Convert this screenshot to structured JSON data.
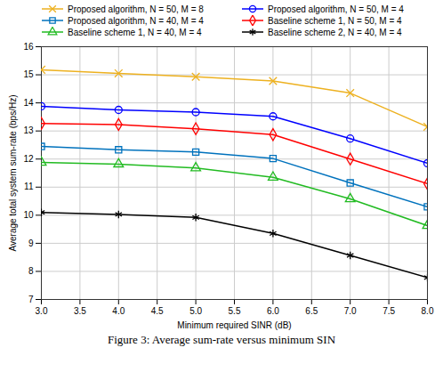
{
  "chart_data": {
    "type": "line",
    "caption": "Figure 3: Average sum-rate versus minimum SIN",
    "x_label": "Minimum required SINR (dB)",
    "y_label": "Average total system sum-rate (bps/Hz)",
    "x": [
      3,
      4,
      5,
      6,
      7,
      8
    ],
    "xlim": [
      3,
      8
    ],
    "xticks": [
      3,
      3.5,
      4,
      4.5,
      5,
      5.5,
      6,
      6.5,
      7,
      7.5,
      8
    ],
    "ylim": [
      7,
      16
    ],
    "yticks": [
      7,
      8,
      9,
      10,
      11,
      12,
      13,
      14,
      15,
      16
    ],
    "grid": true,
    "legend": "top",
    "series": [
      {
        "name": "Proposed algorithm, N = 50, M = 8",
        "color": "#EDB120",
        "marker": "times",
        "values": [
          15.18,
          15.05,
          14.93,
          14.78,
          14.35,
          13.15
        ]
      },
      {
        "name": "Proposed algorithm, N = 50, M = 4",
        "color": "#0000FF",
        "marker": "circle",
        "values": [
          13.88,
          13.75,
          13.67,
          13.52,
          12.73,
          11.85
        ]
      },
      {
        "name": "Proposed algorithm, N = 40, M = 4",
        "color": "#0072BD",
        "marker": "square",
        "values": [
          12.45,
          12.33,
          12.25,
          12.02,
          11.15,
          10.3
        ]
      },
      {
        "name": "Baseline scheme 1, N = 50, M = 4",
        "color": "#FF0000",
        "marker": "diamond",
        "values": [
          13.27,
          13.23,
          13.08,
          12.87,
          12.0,
          11.12
        ]
      },
      {
        "name": "Baseline scheme 1, N = 40, M = 4",
        "color": "#22BB22",
        "marker": "triangle",
        "values": [
          11.88,
          11.82,
          11.68,
          11.35,
          10.58,
          9.63
        ]
      },
      {
        "name": "Baseline scheme 2, N = 40, M = 4",
        "color": "#000000",
        "marker": "asterisk",
        "values": [
          10.1,
          10.03,
          9.92,
          9.35,
          8.57,
          7.78
        ]
      }
    ]
  }
}
